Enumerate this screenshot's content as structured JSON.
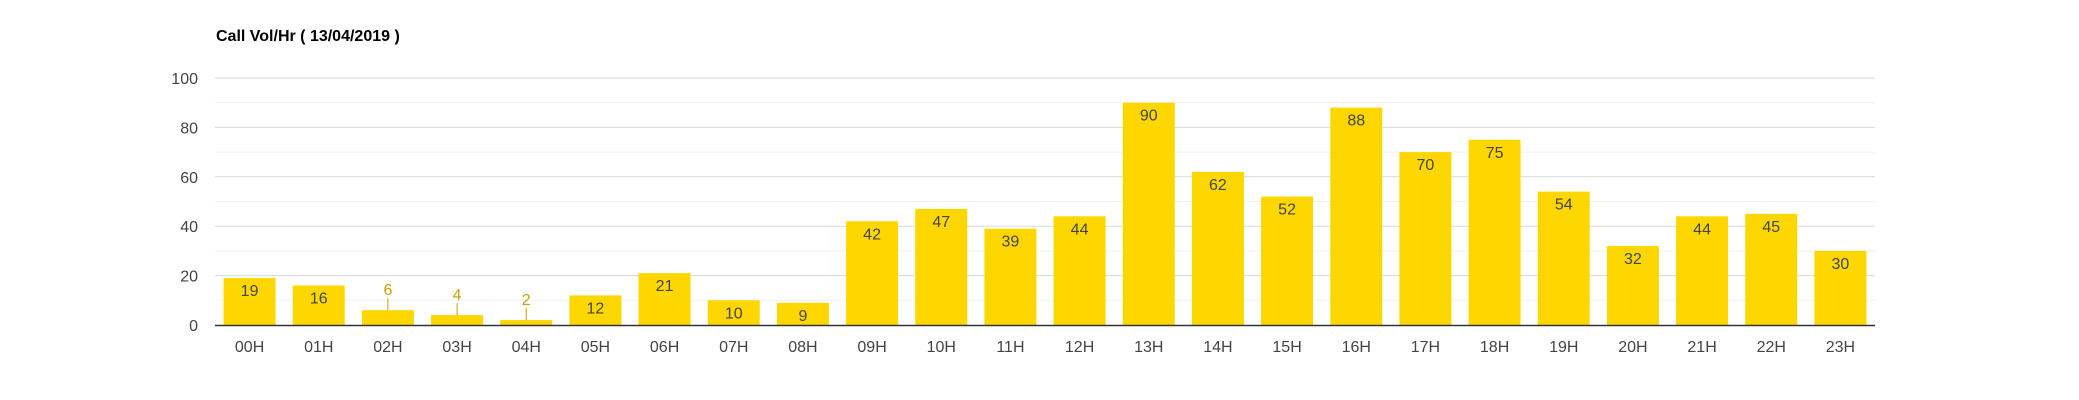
{
  "chart_data": {
    "type": "bar",
    "title": "Call Vol/Hr ( 13/04/2019 )",
    "xlabel": "",
    "ylabel": "",
    "ylim": [
      0,
      100
    ],
    "yticks": [
      0,
      20,
      40,
      60,
      80,
      100
    ],
    "grid": true,
    "legend": "none",
    "categories": [
      "00H",
      "01H",
      "02H",
      "03H",
      "04H",
      "05H",
      "06H",
      "07H",
      "08H",
      "09H",
      "10H",
      "11H",
      "12H",
      "13H",
      "14H",
      "15H",
      "16H",
      "17H",
      "18H",
      "19H",
      "20H",
      "21H",
      "22H",
      "23H"
    ],
    "values": [
      19,
      16,
      6,
      4,
      2,
      12,
      21,
      10,
      9,
      42,
      47,
      39,
      44,
      90,
      62,
      52,
      88,
      70,
      75,
      54,
      32,
      44,
      45,
      30
    ],
    "colors": {
      "bar": "#FFD700",
      "label_inside": "#444444",
      "label_outside": "#C8A200",
      "grid": "#D9D9D9",
      "minor_grid": "#F0F0F0",
      "axis": "#333333",
      "tick_label": "#444444"
    }
  }
}
